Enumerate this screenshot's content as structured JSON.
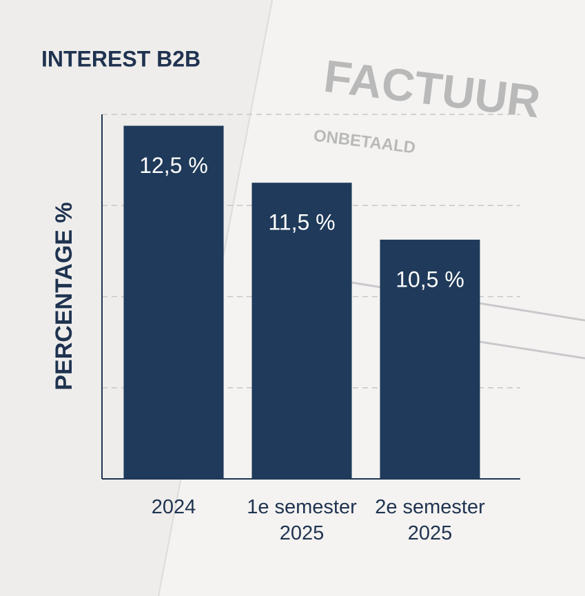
{
  "chart_data": {
    "type": "bar",
    "title": "INTEREST B2B",
    "y_label": "PERCENTAGE %",
    "annotations": [
      "FACTUUR",
      "ONBETAALD"
    ],
    "categories": [
      "2024",
      "1e semester 2025",
      "2e semester 2025"
    ],
    "values": [
      12.5,
      11.5,
      10.5
    ],
    "value_labels": [
      "12,5 %",
      "11,5 %",
      "10,5 %"
    ],
    "color": "#1f3a5a",
    "ylim": [
      6.3,
      12.7
    ],
    "yticks": [
      6.3,
      7.9,
      9.5,
      11.1,
      12.7
    ],
    "tick_labels": false,
    "grid": true
  }
}
